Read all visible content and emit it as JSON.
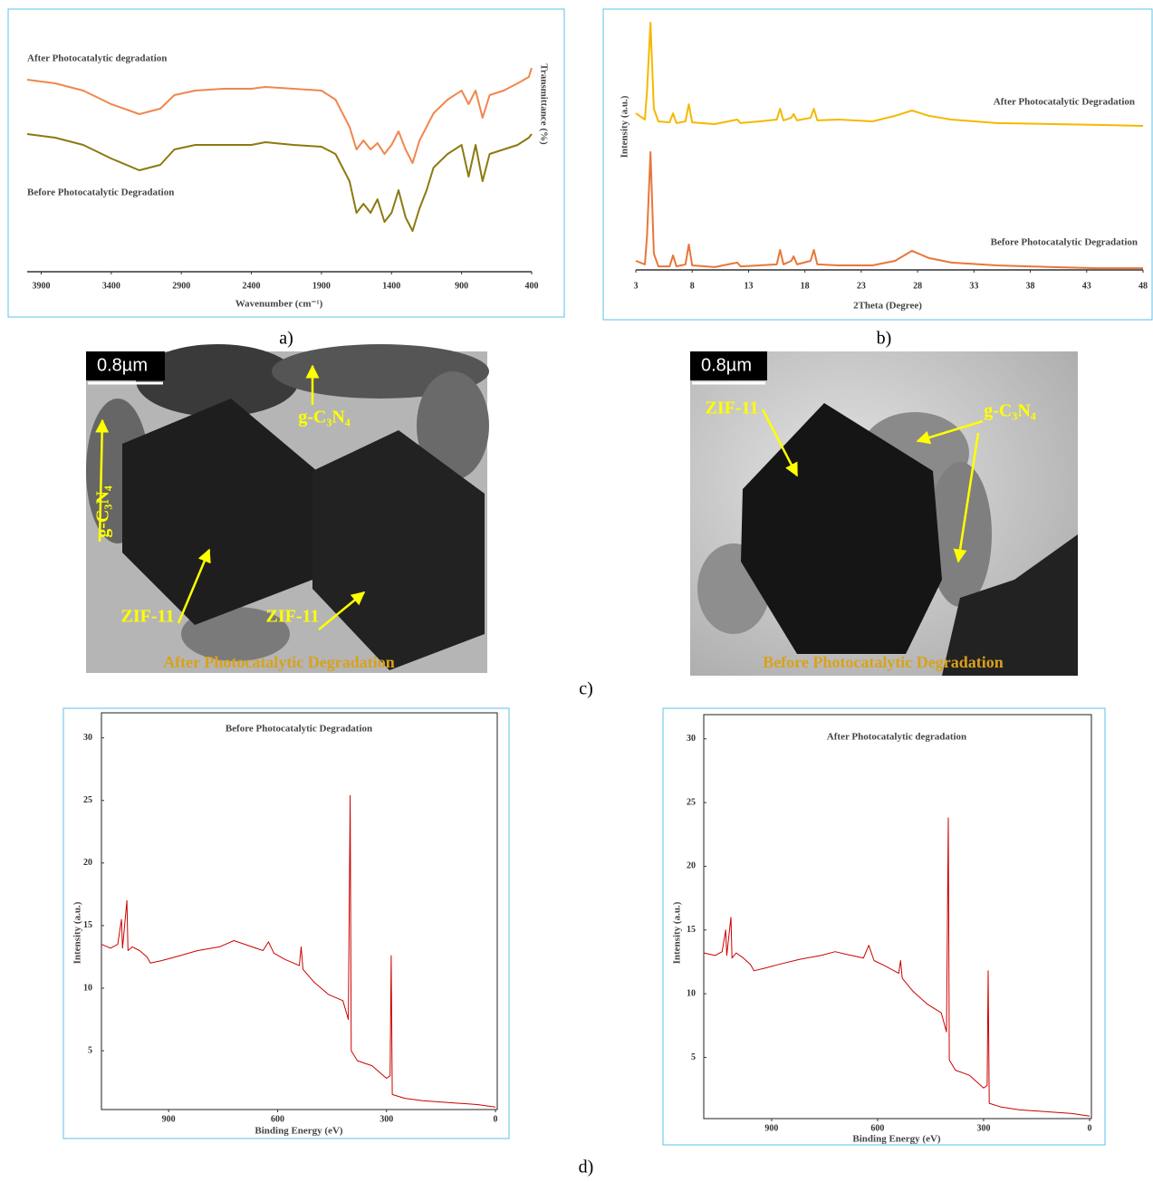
{
  "panel_labels": [
    "a)",
    "b)",
    "c)",
    "d)"
  ],
  "chart_data": [
    {
      "type": "line",
      "x_label": "Wavenumber (cm⁻¹)",
      "y_label": "Transmittance (%)",
      "xlim": [
        4000,
        400
      ],
      "xticks": [
        3900,
        3400,
        2900,
        2400,
        1900,
        1400,
        900,
        400
      ],
      "ylim": [
        0,
        100
      ],
      "x": [
        4000,
        3800,
        3600,
        3400,
        3200,
        3050,
        2950,
        2800,
        2600,
        2400,
        2300,
        2100,
        1900,
        1800,
        1700,
        1650,
        1600,
        1550,
        1500,
        1450,
        1400,
        1350,
        1300,
        1250,
        1200,
        1150,
        1100,
        1000,
        900,
        850,
        800,
        750,
        700,
        600,
        500,
        420,
        400
      ],
      "series": [
        {
          "name": "After Photocatalytic degradation",
          "color": "#f0874e",
          "values": [
            84.8,
            83.2,
            80,
            74,
            69.6,
            72,
            78,
            80,
            80.8,
            80.8,
            81.6,
            80.8,
            80,
            76,
            64,
            54,
            58,
            54,
            56.8,
            52,
            56,
            62,
            54,
            48,
            58,
            64,
            70,
            76,
            80,
            74,
            80,
            68,
            78,
            80,
            83.2,
            86,
            90
          ]
        },
        {
          "name": "Before Photocatalytic Degradation",
          "color": "#8c7a10",
          "values": [
            60.8,
            59.2,
            56,
            50,
            44.8,
            47.2,
            54,
            56,
            56,
            56,
            57.2,
            56,
            55.2,
            52,
            40,
            26,
            30,
            26,
            32,
            22,
            26,
            36,
            24,
            18,
            28,
            36,
            46,
            52,
            56,
            42,
            56,
            40,
            52,
            54,
            56,
            59.2,
            60.8
          ]
        }
      ]
    },
    {
      "type": "line",
      "x_label": "2Theta (Degree)",
      "y_label": "Intensity (a.u.)",
      "xlim": [
        3,
        48
      ],
      "xticks": [
        3,
        8,
        13,
        18,
        23,
        28,
        33,
        38,
        43,
        48
      ],
      "ylim": [
        0,
        100
      ],
      "x": [
        3,
        3.8,
        4.0,
        4.3,
        4.6,
        5,
        6.0,
        6.3,
        6.6,
        7.4,
        7.7,
        8.0,
        10,
        12,
        12.3,
        14,
        15.5,
        15.8,
        16.1,
        16.8,
        17,
        17.3,
        18.5,
        18.8,
        19.1,
        21,
        24,
        26,
        27.5,
        29,
        31,
        35,
        40,
        44,
        48
      ],
      "series": [
        {
          "name": "After Photocatalytic Degradation",
          "color": "#f5b800",
          "values": [
            62.2,
            59.7,
            71.2,
            98.2,
            64.0,
            59.0,
            58.6,
            62.2,
            58.3,
            59.0,
            65.8,
            58.6,
            57.9,
            59.7,
            58.3,
            59.0,
            59.7,
            64.0,
            59.4,
            60.4,
            61.9,
            59.4,
            60.4,
            64.0,
            59.4,
            59.7,
            59.0,
            61.2,
            63.3,
            61.2,
            59.7,
            58.3,
            57.9,
            57.6,
            57.2
          ]
        },
        {
          "name": "Before Photocatalytic Degradation",
          "color": "#e8773a",
          "values": [
            3.6,
            2.2,
            13.7,
            46.8,
            6.5,
            1.4,
            1.4,
            5.8,
            1.4,
            2.2,
            10.1,
            1.8,
            1.1,
            2.9,
            1.4,
            1.8,
            2.2,
            7.9,
            2.2,
            3.6,
            5.4,
            2.2,
            3.6,
            7.9,
            2.2,
            1.8,
            1.8,
            3.6,
            7.6,
            4.7,
            2.9,
            1.8,
            1.1,
            0.7,
            0.7
          ]
        }
      ]
    },
    {
      "type": "line",
      "title": "Before Photocatalytic Degradation",
      "x_label": "Binding Energy (eV)",
      "y_label": "Intensity (a.u.)",
      "xlim": [
        1085,
        0
      ],
      "xticks": [
        900,
        600,
        300,
        0
      ],
      "ylim": [
        0.3,
        32
      ],
      "yticks": [
        5,
        10,
        15,
        20,
        25,
        30
      ],
      "x": [
        1085,
        1060,
        1040,
        1030,
        1027,
        1015,
        1012,
        1000,
        980,
        960,
        950,
        920,
        880,
        820,
        760,
        720,
        690,
        640,
        625,
        610,
        580,
        540,
        535,
        530,
        500,
        460,
        420,
        405,
        400,
        397,
        380,
        340,
        300,
        290,
        287,
        284,
        250,
        200,
        100,
        50,
        0
      ],
      "series": [
        {
          "color": "#cc0000",
          "values": [
            13.5,
            13.2,
            13.5,
            15.5,
            13.2,
            17,
            13,
            13.3,
            13,
            12.5,
            12,
            12.2,
            12.5,
            13,
            13.3,
            13.8,
            13.5,
            13,
            13.7,
            12.8,
            12.3,
            11.8,
            13.3,
            11.5,
            10.5,
            9.5,
            9,
            7.5,
            25.4,
            5,
            4.2,
            3.8,
            2.8,
            3,
            12.6,
            1.5,
            1.2,
            1,
            0.8,
            0.7,
            0.5
          ]
        }
      ]
    },
    {
      "type": "line",
      "title": "After Photocatalytic degradation",
      "x_label": "Binding Energy (eV)",
      "y_label": "Intensity (a.u.)",
      "xlim": [
        1092,
        0
      ],
      "xticks": [
        900,
        600,
        300,
        0
      ],
      "ylim": [
        0.2,
        31.9
      ],
      "yticks": [
        5,
        10,
        15,
        20,
        25,
        30
      ],
      "x": [
        1092,
        1060,
        1040,
        1030,
        1027,
        1015,
        1012,
        1000,
        980,
        960,
        950,
        920,
        880,
        820,
        760,
        720,
        690,
        640,
        625,
        610,
        580,
        540,
        535,
        530,
        500,
        460,
        420,
        405,
        400,
        397,
        380,
        340,
        300,
        290,
        287,
        284,
        250,
        200,
        100,
        50,
        0
      ],
      "series": [
        {
          "color": "#cc0000",
          "values": [
            13.2,
            13,
            13.3,
            15,
            13,
            16,
            12.8,
            13.2,
            12.8,
            12.3,
            11.8,
            12,
            12.3,
            12.7,
            13,
            13.3,
            13.1,
            12.8,
            13.8,
            12.6,
            12.2,
            11.6,
            12.6,
            11.2,
            10.2,
            9.2,
            8.5,
            7,
            23.8,
            4.8,
            4,
            3.6,
            2.6,
            2.8,
            11.8,
            1.4,
            1.1,
            0.9,
            0.7,
            0.6,
            0.4
          ]
        }
      ]
    }
  ],
  "images": [
    {
      "scale_bar": "0.8µm",
      "labels": [
        "g-C₃N₄",
        "g-C₃N₄",
        "ZIF-11",
        "ZIF-11"
      ],
      "caption": "After Photocatalytic Degradation"
    },
    {
      "scale_bar": "0.8µm",
      "labels": [
        "ZIF-11",
        "g-C₃N₄"
      ],
      "caption": "Before Photocatalytic Degradation"
    }
  ]
}
